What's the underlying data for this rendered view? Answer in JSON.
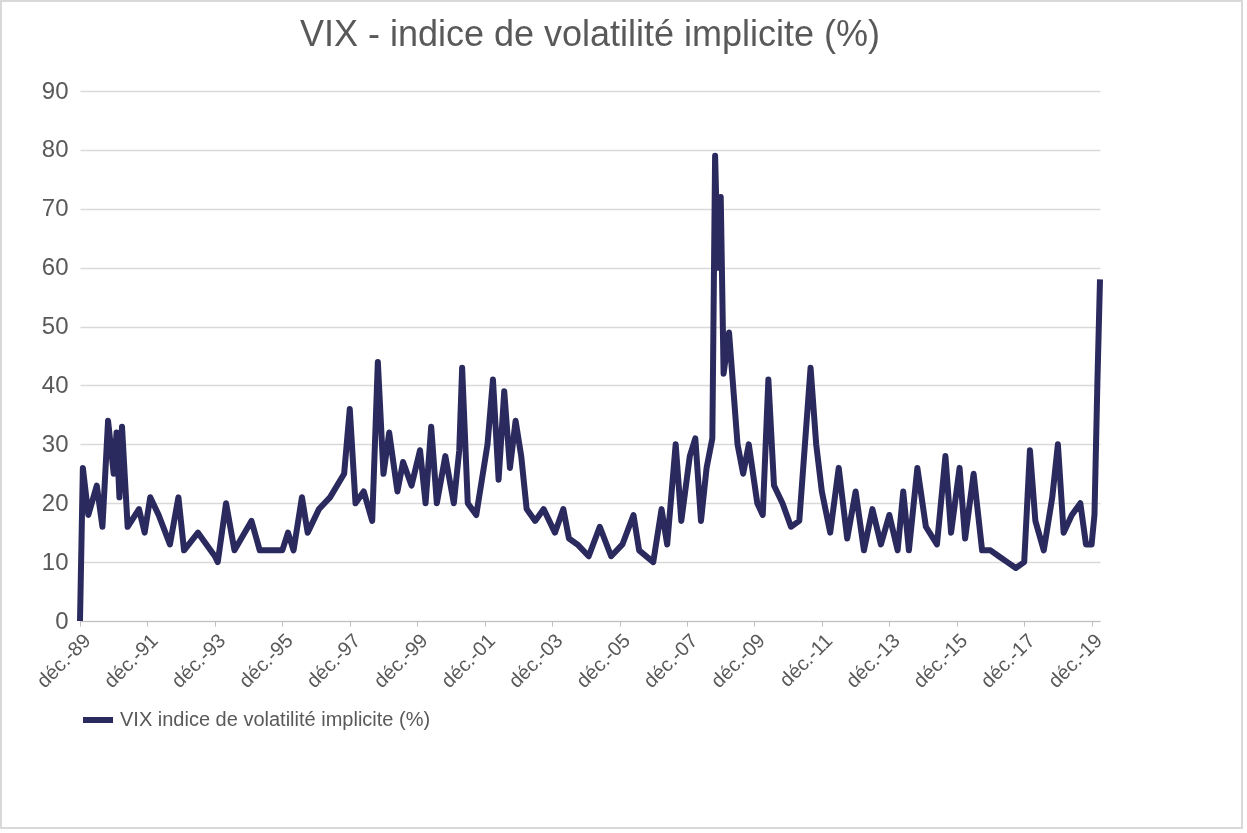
{
  "chart_data": {
    "type": "line",
    "title": "VIX - indice de volatilité implicite (%)",
    "x": [
      "1989-12",
      "1990-01",
      "1990-03",
      "1990-06",
      "1990-08",
      "1990-10",
      "1990-12",
      "1991-01",
      "1991-02",
      "1991-03",
      "1991-05",
      "1991-09",
      "1991-11",
      "1992-01",
      "1992-04",
      "1992-08",
      "1992-11",
      "1993-01",
      "1993-06",
      "1993-12",
      "1994-01",
      "1994-04",
      "1994-07",
      "1995-01",
      "1995-04",
      "1995-12",
      "1996-02",
      "1996-04",
      "1996-07",
      "1996-09",
      "1997-01",
      "1997-05",
      "1997-10",
      "1997-12",
      "1998-02",
      "1998-05",
      "1998-08",
      "1998-10",
      "1998-12",
      "1999-02",
      "1999-05",
      "1999-07",
      "1999-10",
      "2000-01",
      "2000-03",
      "2000-05",
      "2000-07",
      "2000-10",
      "2001-01",
      "2001-03",
      "2001-04",
      "2001-06",
      "2001-09",
      "2002-01",
      "2002-03",
      "2002-05",
      "2002-07",
      "2002-09",
      "2002-11",
      "2003-01",
      "2003-03",
      "2003-06",
      "2003-09",
      "2004-01",
      "2004-04",
      "2004-06",
      "2004-09",
      "2005-01",
      "2005-05",
      "2005-09",
      "2006-01",
      "2006-05",
      "2006-07",
      "2006-12",
      "2007-03",
      "2007-05",
      "2007-08",
      "2007-10",
      "2008-01",
      "2008-03",
      "2008-05",
      "2008-07",
      "2008-09",
      "2008-10",
      "2008-11",
      "2008-12",
      "2009-01",
      "2009-03",
      "2009-06",
      "2009-08",
      "2009-10",
      "2010-01",
      "2010-03",
      "2010-05",
      "2010-07",
      "2010-10",
      "2011-01",
      "2011-04",
      "2011-08",
      "2011-10",
      "2011-12",
      "2012-03",
      "2012-06",
      "2012-09",
      "2012-12",
      "2013-03",
      "2013-06",
      "2013-09",
      "2013-12",
      "2014-03",
      "2014-05",
      "2014-07",
      "2014-10",
      "2015-01",
      "2015-05",
      "2015-08",
      "2015-10",
      "2016-01",
      "2016-03",
      "2016-06",
      "2016-09",
      "2016-12",
      "2017-03",
      "2017-06",
      "2017-09",
      "2017-12",
      "2018-02",
      "2018-04",
      "2018-07",
      "2018-10",
      "2018-12",
      "2019-02",
      "2019-05",
      "2019-08",
      "2019-10",
      "2019-12",
      "2020-01",
      "2020-02",
      "2020-03"
    ],
    "series": [
      {
        "name": "VIX indice de volatilité implicite (%)",
        "color": "#2b2a5e",
        "values": [
          0,
          26,
          18,
          23,
          16,
          34,
          25,
          32,
          21,
          33,
          16,
          19,
          15,
          21,
          18,
          13,
          21,
          12,
          15,
          11,
          10,
          20,
          12,
          17,
          12,
          12,
          15,
          12,
          21,
          15,
          19,
          21,
          25,
          36,
          20,
          22,
          17,
          44,
          25,
          32,
          22,
          27,
          23,
          29,
          20,
          33,
          20,
          28,
          20,
          29,
          43,
          20,
          18,
          30,
          41,
          24,
          39,
          26,
          34,
          28,
          19,
          17,
          19,
          15,
          19,
          14,
          13,
          11,
          16,
          11,
          13,
          18,
          12,
          10,
          19,
          13,
          30,
          17,
          28,
          31,
          17,
          26,
          31,
          79,
          60,
          72,
          42,
          49,
          30,
          25,
          30,
          20,
          18,
          41,
          23,
          20,
          16,
          17,
          43,
          30,
          22,
          15,
          26,
          14,
          22,
          12,
          19,
          13,
          18,
          12,
          22,
          12,
          26,
          16,
          13,
          28,
          15,
          26,
          14,
          25,
          12,
          12,
          11,
          10,
          9,
          10,
          29,
          17,
          12,
          21,
          30,
          15,
          18,
          20,
          13,
          13,
          18,
          40,
          58
        ]
      }
    ],
    "xlim": [
      "1989-12",
      "2020-03"
    ],
    "xticks": [
      {
        "value": "1989-12",
        "label": "déc.-89"
      },
      {
        "value": "1991-12",
        "label": "déc.-91"
      },
      {
        "value": "1993-12",
        "label": "déc.-93"
      },
      {
        "value": "1995-12",
        "label": "déc.-95"
      },
      {
        "value": "1997-12",
        "label": "déc.-97"
      },
      {
        "value": "1999-12",
        "label": "déc.-99"
      },
      {
        "value": "2001-12",
        "label": "déc.-01"
      },
      {
        "value": "2003-12",
        "label": "déc.-03"
      },
      {
        "value": "2005-12",
        "label": "déc.-05"
      },
      {
        "value": "2007-12",
        "label": "déc.-07"
      },
      {
        "value": "2009-12",
        "label": "déc.-09"
      },
      {
        "value": "2011-12",
        "label": "déc.-11"
      },
      {
        "value": "2013-12",
        "label": "déc.-13"
      },
      {
        "value": "2015-12",
        "label": "déc.-15"
      },
      {
        "value": "2017-12",
        "label": "déc.-17"
      },
      {
        "value": "2019-12",
        "label": "déc.-19"
      }
    ],
    "ylim": [
      0,
      90
    ],
    "yticks": [
      0,
      10,
      20,
      30,
      40,
      50,
      60,
      70,
      80,
      90
    ],
    "grid": "y",
    "legend": "bottom",
    "marker": "none",
    "line_style": "solid"
  }
}
